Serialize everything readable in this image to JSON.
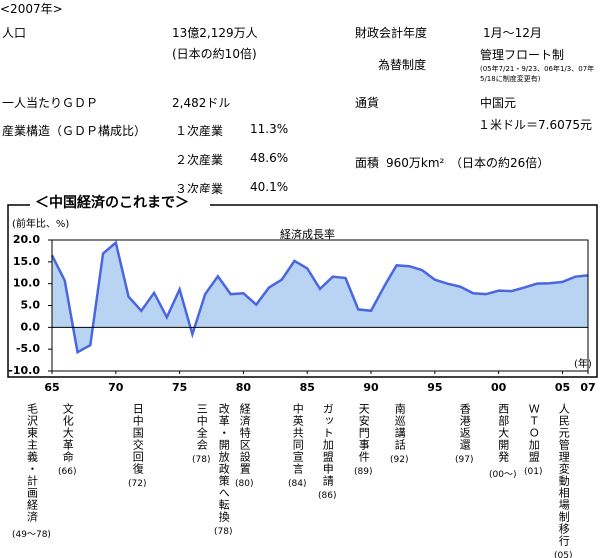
{
  "header": {
    "period": "<2007年>"
  },
  "stats": {
    "population": {
      "label": "人口",
      "value": "13億2,129万人",
      "note": "(日本の約10倍)"
    },
    "fiscal_year": {
      "label": "財政会計年度",
      "value": "1月～12月"
    },
    "exchange": {
      "label": "為替制度",
      "value": "管理フロート制",
      "note": [
        "(05年7/21・9/23、06年1/3、07年",
        "5/18に制度変更有)"
      ]
    },
    "gdp_per_capita": {
      "label": "一人当たりＧＤＰ",
      "value": "2,482ドル"
    },
    "currency": {
      "label": "通貨",
      "value": "中国元",
      "rate": "１米ドル＝7.6075元"
    },
    "industry": {
      "label": "産業構造（ＧＤＰ構成比）",
      "rows": [
        [
          "１次産業",
          "11.3%"
        ],
        [
          "２次産業",
          "48.6%"
        ],
        [
          "３次産業",
          "40.1%"
        ]
      ]
    },
    "area": {
      "label": "面積",
      "value": "960万km²",
      "note": "（日本の約26倍）"
    }
  },
  "chart_data": {
    "type": "area",
    "title": "＜中国経済のこれまで＞",
    "series_label": "経済成長率",
    "y_label": "(前年比、%)",
    "x_label": "(年)",
    "x": [
      1965,
      1966,
      1967,
      1968,
      1969,
      1970,
      1971,
      1972,
      1973,
      1974,
      1975,
      1976,
      1977,
      1978,
      1979,
      1980,
      1981,
      1982,
      1983,
      1984,
      1985,
      1986,
      1987,
      1988,
      1989,
      1990,
      1991,
      1992,
      1993,
      1994,
      1995,
      1996,
      1997,
      1998,
      1999,
      2000,
      2001,
      2002,
      2003,
      2004,
      2005,
      2006,
      2007
    ],
    "values": [
      16.5,
      10.7,
      -5.7,
      -4.1,
      16.9,
      19.4,
      7.0,
      3.8,
      7.9,
      2.3,
      8.7,
      -1.6,
      7.6,
      11.7,
      7.6,
      7.8,
      5.2,
      9.1,
      10.9,
      15.2,
      13.5,
      8.8,
      11.6,
      11.3,
      4.1,
      3.8,
      9.2,
      14.2,
      14.0,
      13.1,
      10.9,
      10.0,
      9.3,
      7.8,
      7.6,
      8.4,
      8.3,
      9.1,
      10.0,
      10.1,
      10.4,
      11.6,
      11.9
    ],
    "line_color": "#4a66e0",
    "fill_color": "#b9d4f3",
    "xlim": [
      1965,
      2007
    ],
    "ylim": [
      -10,
      20
    ],
    "xticks": [
      {
        "value": 1965,
        "label": "65"
      },
      {
        "value": 1970,
        "label": "70"
      },
      {
        "value": 1975,
        "label": "75"
      },
      {
        "value": 1980,
        "label": "80"
      },
      {
        "value": 1985,
        "label": "85"
      },
      {
        "value": 1990,
        "label": "90"
      },
      {
        "value": 1995,
        "label": "95"
      },
      {
        "value": 2000,
        "label": "00"
      },
      {
        "value": 2005,
        "label": "05"
      },
      {
        "value": 2007,
        "label": "07"
      }
    ],
    "yticks": [
      {
        "value": 20,
        "label": "20.0"
      },
      {
        "value": 15,
        "label": "15.0"
      },
      {
        "value": 10,
        "label": "10.0"
      },
      {
        "value": 5,
        "label": "5.0"
      },
      {
        "value": 0,
        "label": "0.0"
      },
      {
        "value": -5,
        "label": "-5.0"
      },
      {
        "value": -10,
        "label": "-10.0"
      }
    ],
    "annotations": [
      {
        "text": "毛沢東主義・計画経済",
        "period": "(49～78)"
      },
      {
        "text": "文化大革命",
        "period": "(66)"
      },
      {
        "text": "日中国交回復",
        "period": "(72)"
      },
      {
        "text": "三中全会",
        "period": "(78)"
      },
      {
        "text": "改革・開放政策へ転換",
        "period": "(78)"
      },
      {
        "text": "経済特区設置",
        "period": "(80)"
      },
      {
        "text": "中英共同宣言",
        "period": "(84)"
      },
      {
        "text": "ガット加盟申請",
        "period": "(86)"
      },
      {
        "text": "天安門事件",
        "period": "(89)"
      },
      {
        "text": "南巡講話",
        "period": "(92)"
      },
      {
        "text": "香港返還",
        "period": "(97)"
      },
      {
        "text": "西部大開発",
        "period": "(00～)"
      },
      {
        "text": "ＷＴＯ加盟",
        "period": "(01)"
      },
      {
        "text": "人民元管理変動相場制移行",
        "period": "(05)"
      }
    ]
  }
}
